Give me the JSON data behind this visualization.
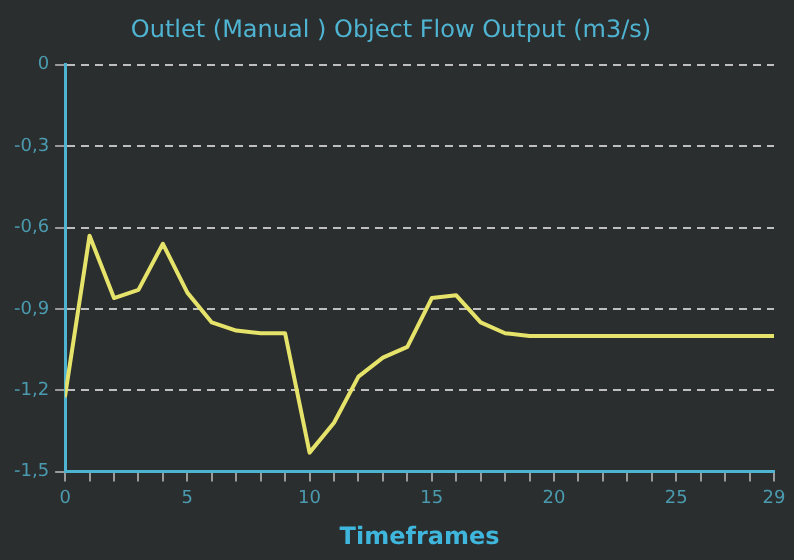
{
  "chart_data": {
    "type": "line",
    "title": "Outlet (Manual ) Object Flow Output (m3/s)",
    "xlabel": "Timeframes",
    "x": [
      0,
      1,
      2,
      3,
      4,
      5,
      6,
      7,
      8,
      9,
      10,
      11,
      12,
      13,
      14,
      15,
      16,
      17,
      18,
      19,
      20,
      21,
      22,
      23,
      24,
      25,
      26,
      27,
      28,
      29
    ],
    "series": [
      {
        "color": "#e6e36a",
        "values": [
          -1.22,
          -0.63,
          -0.86,
          -0.83,
          -0.66,
          -0.84,
          -0.95,
          -0.98,
          -0.99,
          -0.99,
          -1.43,
          -1.32,
          -1.15,
          -1.08,
          -1.04,
          -0.86,
          -0.85,
          -0.95,
          -0.99,
          -1.0,
          -1.0,
          -1.0,
          -1.0,
          -1.0,
          -1.0,
          -1.0,
          -1.0,
          -1.0,
          -1.0,
          -1.0
        ]
      }
    ],
    "xlim": [
      0,
      29
    ],
    "xticks": [
      0,
      {
        "value": 1,
        "label": null
      },
      {
        "value": 2,
        "label": null
      },
      {
        "value": 3,
        "label": null
      },
      {
        "value": 4,
        "label": null
      },
      5,
      {
        "value": 6,
        "label": null
      },
      {
        "value": 7,
        "label": null
      },
      {
        "value": 8,
        "label": null
      },
      {
        "value": 9,
        "label": null
      },
      10,
      {
        "value": 11,
        "label": null
      },
      {
        "value": 12,
        "label": null
      },
      {
        "value": 13,
        "label": null
      },
      {
        "value": 14,
        "label": null
      },
      15,
      {
        "value": 16,
        "label": null
      },
      {
        "value": 17,
        "label": null
      },
      {
        "value": 18,
        "label": null
      },
      {
        "value": 19,
        "label": null
      },
      20,
      {
        "value": 21,
        "label": null
      },
      {
        "value": 22,
        "label": null
      },
      {
        "value": 23,
        "label": null
      },
      {
        "value": 24,
        "label": null
      },
      25,
      {
        "value": 26,
        "label": null
      },
      {
        "value": 27,
        "label": null
      },
      {
        "value": 28,
        "label": null
      },
      29
    ],
    "ylim": [
      -1.5,
      0
    ],
    "yticks": [
      {
        "value": -1.5,
        "label": "-1,5"
      },
      {
        "value": -1.2,
        "label": "-1,2"
      },
      {
        "value": -0.9,
        "label": "-0,9"
      },
      {
        "value": -0.6,
        "label": "-0,6"
      },
      {
        "value": -0.3,
        "label": "-0,3"
      },
      0
    ],
    "grid": "y",
    "legend": false,
    "marker": "none",
    "line_style": "solid"
  }
}
